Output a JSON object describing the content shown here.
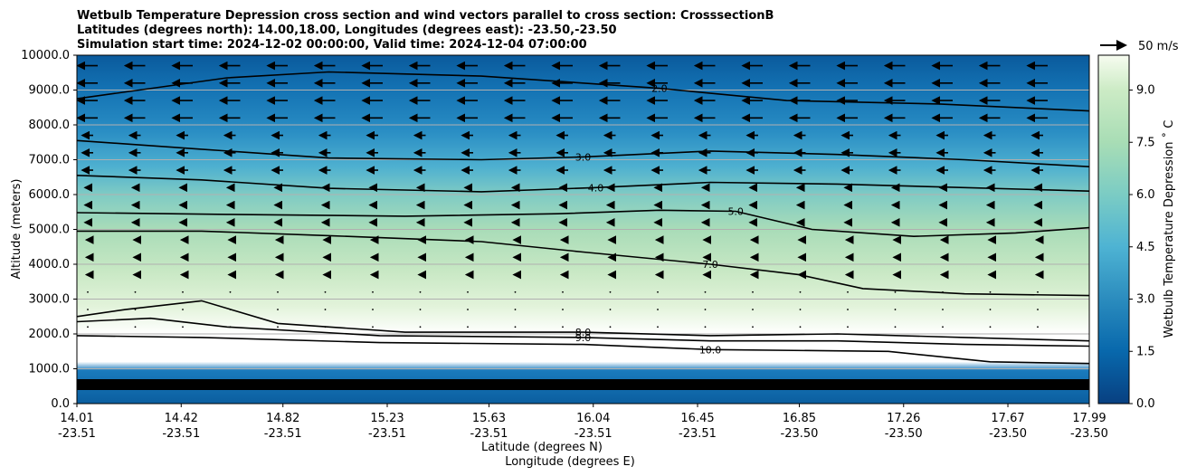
{
  "chart_data": {
    "type": "contour",
    "title_lines": [
      "Wetbulb Temperature Depression cross section and wind vectors parallel to cross section: CrosssectionB",
      "Latitudes (degrees north): 14.00,18.00, Longitudes (degrees east): -23.50,-23.50",
      "Simulation start time: 2024-12-02 00:00:00, Valid time: 2024-12-04 07:00:00"
    ],
    "ylabel": "Altitude (meters)",
    "xlabel_lat": "Latitude (degrees N)",
    "xlabel_lon": "Longitude (degrees E)",
    "ylim": [
      0,
      10000
    ],
    "xlim": [
      14.01,
      17.99
    ],
    "y_ticks": [
      {
        "value": 0,
        "label": "0.0"
      },
      {
        "value": 1000,
        "label": "1000.0"
      },
      {
        "value": 2000,
        "label": "2000.0"
      },
      {
        "value": 3000,
        "label": "3000.0"
      },
      {
        "value": 4000,
        "label": "4000.0"
      },
      {
        "value": 5000,
        "label": "5000.0"
      },
      {
        "value": 6000,
        "label": "6000.0"
      },
      {
        "value": 7000,
        "label": "7000.0"
      },
      {
        "value": 8000,
        "label": "8000.0"
      },
      {
        "value": 9000,
        "label": "9000.0"
      },
      {
        "value": 10000,
        "label": "10000.0"
      }
    ],
    "x_ticks": [
      {
        "value": 14.01,
        "lat": "14.01",
        "lon": "-23.51"
      },
      {
        "value": 14.42,
        "lat": "14.42",
        "lon": "-23.51"
      },
      {
        "value": 14.82,
        "lat": "14.82",
        "lon": "-23.51"
      },
      {
        "value": 15.23,
        "lat": "15.23",
        "lon": "-23.51"
      },
      {
        "value": 15.63,
        "lat": "15.63",
        "lon": "-23.51"
      },
      {
        "value": 16.04,
        "lat": "16.04",
        "lon": "-23.51"
      },
      {
        "value": 16.45,
        "lat": "16.45",
        "lon": "-23.51"
      },
      {
        "value": 16.85,
        "lat": "16.85",
        "lon": "-23.50"
      },
      {
        "value": 17.26,
        "lat": "17.26",
        "lon": "-23.50"
      },
      {
        "value": 17.67,
        "lat": "17.67",
        "lon": "-23.50"
      },
      {
        "value": 17.99,
        "lat": "17.99",
        "lon": "-23.50"
      }
    ],
    "colorbar": {
      "label": "Wetbulb Temperature Depression ˚ C",
      "min": 0,
      "max": 10,
      "ticks": [
        {
          "value": 0,
          "label": "0.0"
        },
        {
          "value": 1.5,
          "label": "1.5"
        },
        {
          "value": 3,
          "label": "3.0"
        },
        {
          "value": 4.5,
          "label": "4.5"
        },
        {
          "value": 6,
          "label": "6.0"
        },
        {
          "value": 7.5,
          "label": "7.5"
        },
        {
          "value": 9,
          "label": "9.0"
        }
      ]
    },
    "wind_key_label": "50 m/s",
    "contour_lines": [
      {
        "level": "2.0",
        "points": [
          [
            14.01,
            8750
          ],
          [
            14.6,
            9350
          ],
          [
            15.0,
            9520
          ],
          [
            15.6,
            9400
          ],
          [
            16.3,
            9050
          ],
          [
            16.8,
            8700
          ],
          [
            17.4,
            8600
          ],
          [
            17.99,
            8400
          ]
        ]
      },
      {
        "level": "3.0",
        "points": [
          [
            14.01,
            7550
          ],
          [
            14.5,
            7300
          ],
          [
            15.0,
            7050
          ],
          [
            15.6,
            7000
          ],
          [
            16.0,
            7080
          ],
          [
            16.5,
            7250
          ],
          [
            17.0,
            7150
          ],
          [
            17.5,
            7000
          ],
          [
            17.99,
            6800
          ]
        ]
      },
      {
        "level": "4.0",
        "points": [
          [
            14.01,
            6550
          ],
          [
            14.5,
            6420
          ],
          [
            15.0,
            6180
          ],
          [
            15.6,
            6080
          ],
          [
            16.05,
            6200
          ],
          [
            16.5,
            6350
          ],
          [
            17.0,
            6300
          ],
          [
            17.5,
            6200
          ],
          [
            17.99,
            6100
          ]
        ]
      },
      {
        "level": "5.0",
        "points": [
          [
            14.01,
            5480
          ],
          [
            14.6,
            5430
          ],
          [
            15.3,
            5380
          ],
          [
            15.9,
            5450
          ],
          [
            16.3,
            5550
          ],
          [
            16.6,
            5520
          ],
          [
            16.9,
            5000
          ],
          [
            17.3,
            4800
          ],
          [
            17.7,
            4900
          ],
          [
            17.99,
            5050
          ]
        ]
      },
      {
        "level": "7.0",
        "points": [
          [
            14.01,
            4950
          ],
          [
            14.5,
            4950
          ],
          [
            15.0,
            4820
          ],
          [
            15.6,
            4650
          ],
          [
            16.0,
            4350
          ],
          [
            16.5,
            4000
          ],
          [
            16.85,
            3700
          ],
          [
            17.1,
            3300
          ],
          [
            17.5,
            3150
          ],
          [
            17.99,
            3100
          ]
        ]
      },
      {
        "level": "8.0",
        "points": [
          [
            14.01,
            2500
          ],
          [
            14.2,
            2700
          ],
          [
            14.5,
            2950
          ],
          [
            14.8,
            2300
          ],
          [
            15.3,
            2050
          ],
          [
            16.0,
            2050
          ],
          [
            16.5,
            1950
          ],
          [
            17.0,
            2000
          ],
          [
            17.5,
            1900
          ],
          [
            17.99,
            1800
          ]
        ]
      },
      {
        "level": "9.0",
        "points": [
          [
            14.01,
            2350
          ],
          [
            14.3,
            2450
          ],
          [
            14.6,
            2200
          ],
          [
            15.2,
            1950
          ],
          [
            16.0,
            1900
          ],
          [
            16.5,
            1800
          ],
          [
            17.0,
            1800
          ],
          [
            17.5,
            1700
          ],
          [
            17.99,
            1650
          ]
        ]
      },
      {
        "level": "10.0",
        "points": [
          [
            14.01,
            1950
          ],
          [
            14.5,
            1900
          ],
          [
            15.2,
            1750
          ],
          [
            16.0,
            1700
          ],
          [
            16.5,
            1550
          ],
          [
            17.2,
            1500
          ],
          [
            17.6,
            1200
          ],
          [
            17.99,
            1150
          ]
        ]
      }
    ]
  }
}
